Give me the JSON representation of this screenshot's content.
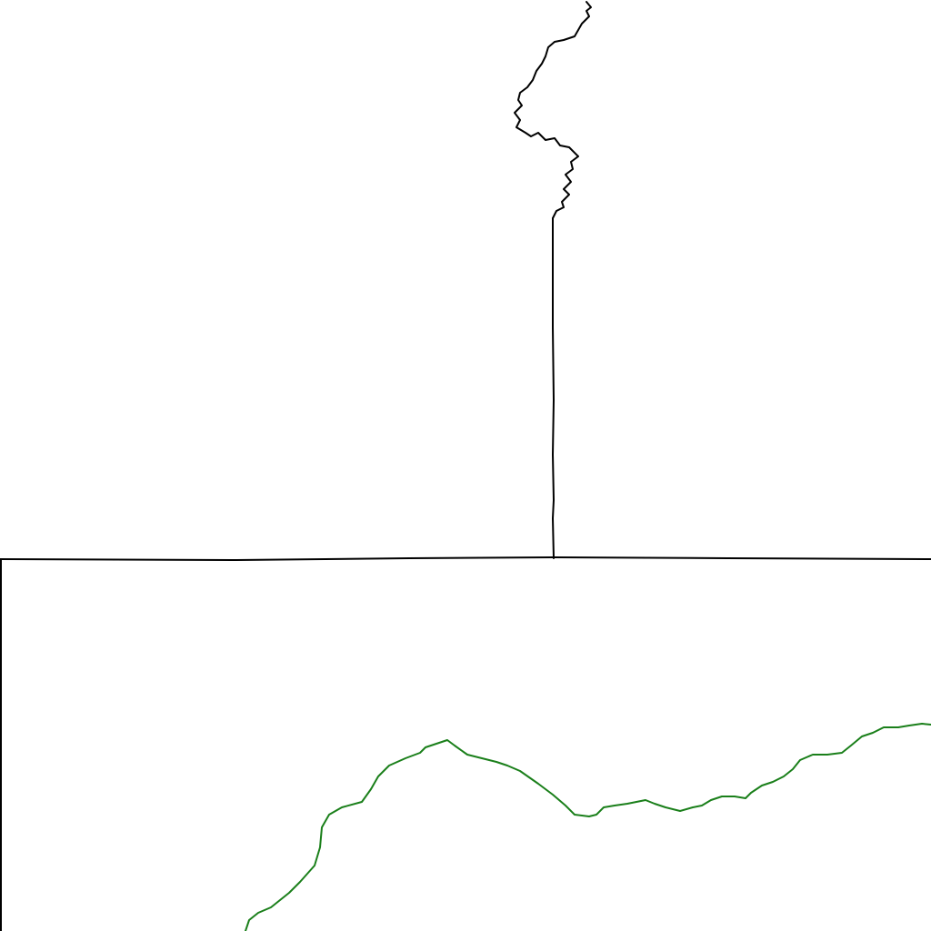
{
  "map": {
    "features": [
      {
        "name": "northern-border-line",
        "kind": "boundary",
        "color": "#000000"
      },
      {
        "name": "vertical-border-line",
        "kind": "boundary",
        "color": "#000000"
      },
      {
        "name": "horizontal-border-line",
        "kind": "boundary",
        "color": "#000000"
      },
      {
        "name": "western-border-line",
        "kind": "boundary",
        "color": "#000000"
      },
      {
        "name": "river-line",
        "kind": "river",
        "color": "#1a7f1a"
      }
    ]
  }
}
